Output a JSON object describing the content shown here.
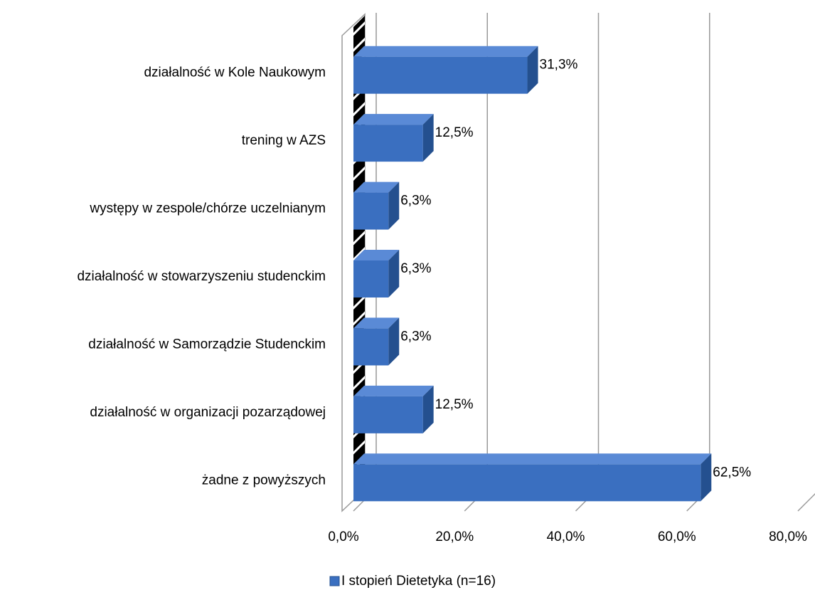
{
  "chart_data": {
    "type": "bar3d_horizontal",
    "categories": [
      "działalność w Kole Naukowym",
      "trening w AZS",
      "występy w zespole/chórze uczelnianym",
      "działalność w stowarzyszeniu studenckim",
      "działalność w Samorządzie Studenckim",
      "działalność w organizacji pozarządowej",
      "żadne z powyższych"
    ],
    "series": [
      {
        "name": "I stopień Dietetyka (n=16)",
        "color": "#3a6fc0",
        "values": [
          31.3,
          12.5,
          6.3,
          6.3,
          6.3,
          12.5,
          62.5
        ],
        "value_labels": [
          "31,3%",
          "12,5%",
          "6,3%",
          "6,3%",
          "6,3%",
          "12,5%",
          "62,5%"
        ]
      }
    ],
    "xlim": [
      0,
      80
    ],
    "xticks": [
      {
        "value": 0,
        "label": "0,0%"
      },
      {
        "value": 20,
        "label": "20,0%"
      },
      {
        "value": 40,
        "label": "40,0%"
      },
      {
        "value": 60,
        "label": "60,0%"
      },
      {
        "value": 80,
        "label": "80,0%"
      }
    ],
    "grid": true
  }
}
